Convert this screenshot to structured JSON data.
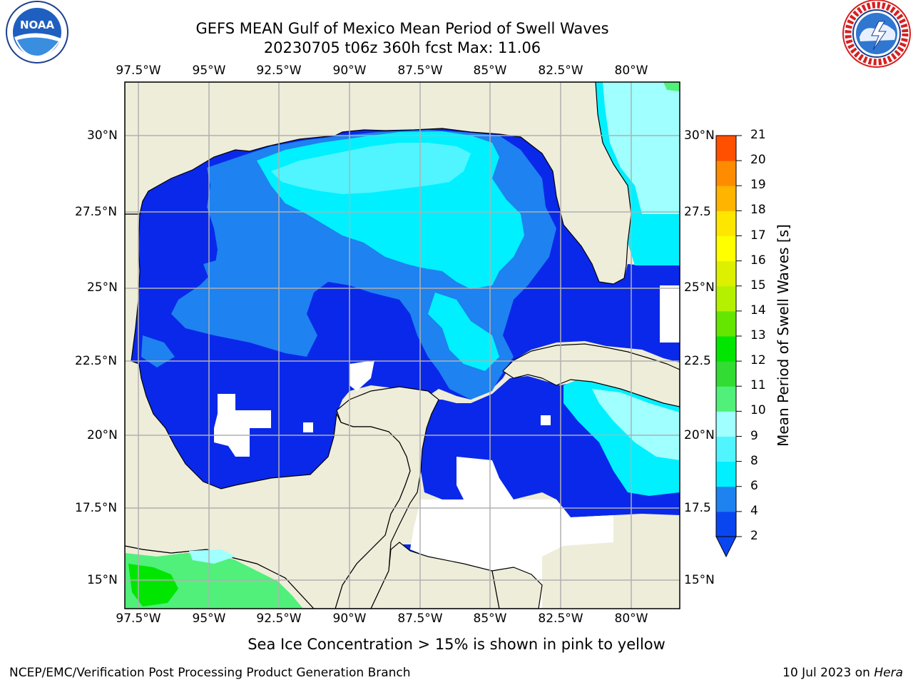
{
  "header": {
    "title_line1": "GEFS MEAN Gulf of Mexico Mean Period of Swell Waves",
    "title_line2": "20230705 t06z 360h fcst   Max: 11.06"
  },
  "logos": {
    "noaa": {
      "text": "NOAA",
      "ring_text": "NATIONAL OCEANIC AND ATMOSPHERIC ADMINISTRATION · U.S. DEPARTMENT OF COMMERCE"
    },
    "nws": {
      "ring_text": "NATIONAL WEATHER SERVICE"
    }
  },
  "map": {
    "lon_labels": [
      "97.5°W",
      "95°W",
      "92.5°W",
      "90°W",
      "87.5°W",
      "85°W",
      "82.5°W",
      "80°W"
    ],
    "lat_labels_left": [
      "30°N",
      "27.5°N",
      "25°N",
      "22.5°N",
      "20°N",
      "17.5°N",
      "15°N"
    ],
    "lat_labels_right": [
      "30°N",
      "27.5",
      "25°N",
      "22.5",
      "20°N",
      "17.5",
      "15°N"
    ]
  },
  "colorbar": {
    "title": "Mean Period of Swell Waves [s]",
    "ticks": [
      "2",
      "4",
      "6",
      "8",
      "9",
      "10",
      "11",
      "12",
      "13",
      "14",
      "15",
      "16",
      "17",
      "18",
      "19",
      "20",
      "21"
    ],
    "colors": [
      "#0a46f0",
      "#1e82f0",
      "#00f0ff",
      "#50f5ff",
      "#a0ffff",
      "#50f07a",
      "#32dc32",
      "#00e600",
      "#64e600",
      "#b4f000",
      "#dcf000",
      "#ffff00",
      "#ffe600",
      "#ffb400",
      "#ff8c00",
      "#ff5000",
      "#ff2800",
      "#ff0000"
    ]
  },
  "colors": {
    "land": "#eeedda",
    "deep_blue": "#0a28ea",
    "mid_blue": "#1e82f0",
    "cyan": "#00f0ff",
    "light_cyan": "#50f5ff",
    "pale_cyan": "#a0ffff",
    "green": "#50f07a",
    "bright_green": "#00e600"
  },
  "footer": {
    "note": "Sea Ice Concentration > 15% is shown in pink to yellow",
    "credit": "NCEP/EMC/Verification Post Processing Product Generation Branch",
    "date": "10 Jul 2023 on",
    "host": "Hera"
  }
}
